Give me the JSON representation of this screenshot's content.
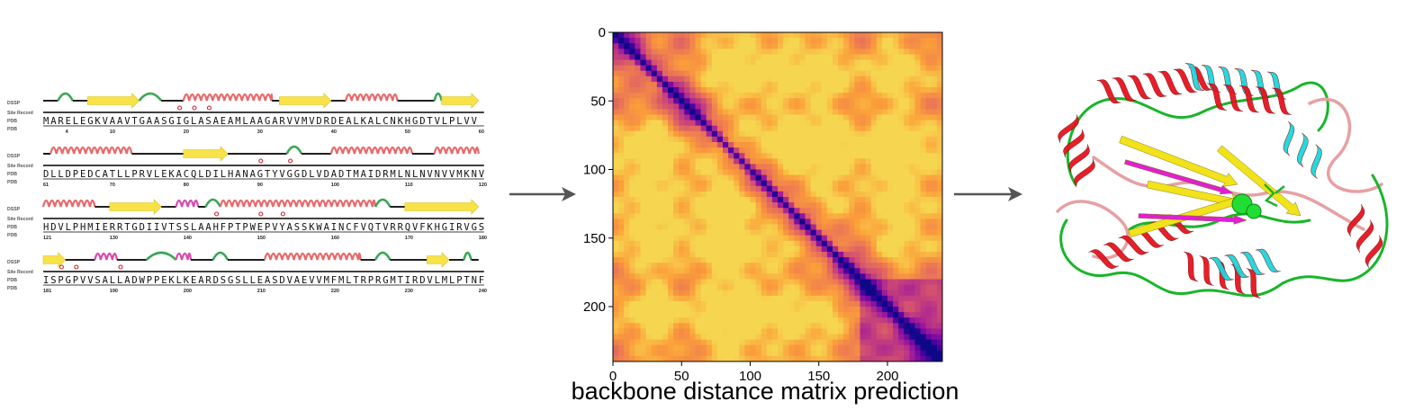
{
  "sequence_panel": {
    "track_labels": {
      "dssp": "DSSP",
      "site": "Site Record",
      "pdb": "PDB",
      "pdb_num": "PDB"
    },
    "rows": [
      {
        "seq": "MARELEGKVAAVTGAASGIGLASAEAMLAAGARVVMVDRDEALKALCNKHGDTVLPLVV",
        "ticks": [
          {
            "res": 4,
            "label": "4"
          },
          {
            "res": 10,
            "label": "10"
          },
          {
            "res": 20,
            "label": "20"
          },
          {
            "res": 30,
            "label": "30"
          },
          {
            "res": 40,
            "label": "40"
          },
          {
            "res": 50,
            "label": "50"
          },
          {
            "res": 60,
            "label": "60"
          }
        ],
        "start": 1
      },
      {
        "seq": "DLLDPEDCATLLPRVLEKACQLDILHANAGTYVGGDLVDADTMAIDRMLNLNVNVVMKNV",
        "ticks": [
          {
            "res": 61,
            "label": "61"
          },
          {
            "res": 70,
            "label": "70"
          },
          {
            "res": 80,
            "label": "80"
          },
          {
            "res": 90,
            "label": "90"
          },
          {
            "res": 100,
            "label": "100"
          },
          {
            "res": 110,
            "label": "110"
          },
          {
            "res": 120,
            "label": "120"
          }
        ],
        "start": 61
      },
      {
        "seq": "HDVLPHMIERRTGDIIVTSSLAAHFPTPWEPVYASSKWAINCFVQTVRRQVFKHGIRVGS",
        "ticks": [
          {
            "res": 121,
            "label": "121"
          },
          {
            "res": 130,
            "label": "130"
          },
          {
            "res": 140,
            "label": "140"
          },
          {
            "res": 150,
            "label": "150"
          },
          {
            "res": 160,
            "label": "160"
          },
          {
            "res": 170,
            "label": "170"
          },
          {
            "res": 180,
            "label": "180"
          }
        ],
        "start": 121
      },
      {
        "seq": "ISPGPVVSALLADWPPEKLKEARDSGSLLEASDVAEVVMFMLTRPRGMTIRDVLMLPTNF",
        "ticks": [
          {
            "res": 181,
            "label": "181"
          },
          {
            "res": 190,
            "label": "190"
          },
          {
            "res": 200,
            "label": "200"
          },
          {
            "res": 210,
            "label": "210"
          },
          {
            "res": 220,
            "label": "220"
          },
          {
            "res": 230,
            "label": "230"
          },
          {
            "res": 240,
            "label": "240"
          }
        ],
        "start": 181
      }
    ],
    "colors": {
      "helix": "#e8696b",
      "strand": "#f7e24a",
      "turn": "#3aa655",
      "bend": "#d94ab0",
      "coil": "#000000",
      "site": "#cc2233"
    }
  },
  "chart_data": {
    "type": "heatmap",
    "title": "",
    "xlabel": "",
    "ylabel": "",
    "xlim": [
      0,
      240
    ],
    "ylim": [
      240,
      0
    ],
    "x_ticks": [
      "0",
      "50",
      "100",
      "150",
      "200"
    ],
    "y_ticks": [
      "0",
      "50",
      "100",
      "150",
      "200"
    ],
    "n_residues": 240,
    "colormap": "plasma",
    "colors": {
      "low": "#1a0a6b",
      "mid": "#9c3fa6",
      "high": "#f5c24a"
    }
  },
  "caption": "backbone distance matrix prediction",
  "arrow_color": "#555555",
  "protein_colors": {
    "red": "#e6141e",
    "cyan": "#1ad7dc",
    "green": "#19b52a",
    "yellow": "#f2e21a",
    "magenta": "#e020d0",
    "pink": "#e6a0a4",
    "ligand": "#22dd33"
  }
}
